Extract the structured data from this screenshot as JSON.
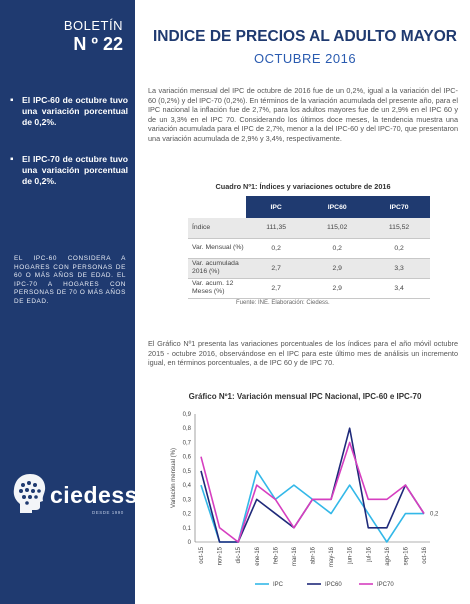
{
  "sidebar": {
    "boletin_label": "BOLETÍN",
    "boletin_number": "N º 22",
    "highlights": [
      "El IPC-60 de octubre tuvo una variación porcentual de 0,2%.",
      "El IPC-70 de octubre tuvo una variación porcentual de 0,2%."
    ],
    "note": "EL IPC-60 CONSIDERA A HOGARES CON PERSONAS DE 60 O MÁS AÑOS DE EDAD. EL IPC-70 A HOGARES CON PERSONAS DE 70 O MÁS AÑOS DE EDAD.",
    "logo_text": "ciedess",
    "logo_sub": "DESDE 1990"
  },
  "header": {
    "title": "INDICE DE PRECIOS AL ADULTO MAYOR",
    "subtitle": "OCTUBRE 2016"
  },
  "intro_paragraph": "La variación mensual del IPC de octubre de 2016 fue de un 0,2%, igual a la variación del IPC-60 (0,2%) y del IPC-70 (0,2%). En términos de la variación acumulada del presente año, para el IPC nacional la inflación fue de 2,7%, para los adultos mayores fue de un 2,9% en el IPC 60 y de un 3,3% en el IPC 70. Considerando los últimos doce meses, la tendencia muestra una variación acumulada para el IPC de 2,7%, menor a la del IPC-60 y del IPC-70, que presentaron una variación acumulada de 2,9% y 3,4%, respectivamente.",
  "table": {
    "title": "Cuadro Nº1: Índices y variaciones octubre de 2016",
    "headers": [
      "",
      "IPC",
      "IPC60",
      "IPC70"
    ],
    "rows": [
      [
        "Índice",
        "111,35",
        "115,02",
        "115,52"
      ],
      [
        "Var. Mensual (%)",
        "0,2",
        "0,2",
        "0,2"
      ],
      [
        "Var. acumulada 2016 (%)",
        "2,7",
        "2,9",
        "3,3"
      ],
      [
        "Var. acum. 12 Meses (%)",
        "2,7",
        "2,9",
        "3,4"
      ]
    ],
    "source": "Fuente: INE. Elaboración: Ciedess."
  },
  "second_paragraph": "El Gráfico Nº1 presenta las variaciones porcentuales de los índices para el año móvil octubre 2015 - octubre 2016, observándose en el IPC para este último mes de análisis un incremento igual, en términos porcentuales, a de IPC 60 y de IPC 70.",
  "chart_data": {
    "type": "line",
    "title": "Gráfico Nº1: Variación mensual IPC Nacional, IPC-60 e IPC-70",
    "ylabel": "Variación mensual (%)",
    "xlabel": "",
    "ylim": [
      0,
      0.9
    ],
    "yticks": [
      "0",
      "0,1",
      "0,2",
      "0,3",
      "0,4",
      "0,5",
      "0,6",
      "0,7",
      "0,8",
      "0,9"
    ],
    "categories": [
      "oct-15",
      "nov-15",
      "dic-15",
      "ene-16",
      "feb-16",
      "mar-16",
      "abr-16",
      "may-16",
      "jun-16",
      "jul-16",
      "ago-16",
      "sep-16",
      "oct-16"
    ],
    "series": [
      {
        "name": "IPC",
        "color": "#33b8e8",
        "values": [
          0.4,
          0.0,
          0.0,
          0.5,
          0.3,
          0.4,
          0.3,
          0.2,
          0.4,
          0.2,
          0.0,
          0.2,
          0.2
        ]
      },
      {
        "name": "IPC60",
        "color": "#1f2a7a",
        "values": [
          0.5,
          0.0,
          0.0,
          0.3,
          0.2,
          0.1,
          0.3,
          0.3,
          0.8,
          0.1,
          0.1,
          0.4,
          0.2
        ]
      },
      {
        "name": "IPC70",
        "color": "#d63fc0",
        "values": [
          0.6,
          0.1,
          0.0,
          0.4,
          0.3,
          0.1,
          0.3,
          0.3,
          0.7,
          0.3,
          0.3,
          0.4,
          0.2
        ]
      }
    ],
    "end_label": "0,2",
    "grid": false,
    "legend": "bottom"
  }
}
